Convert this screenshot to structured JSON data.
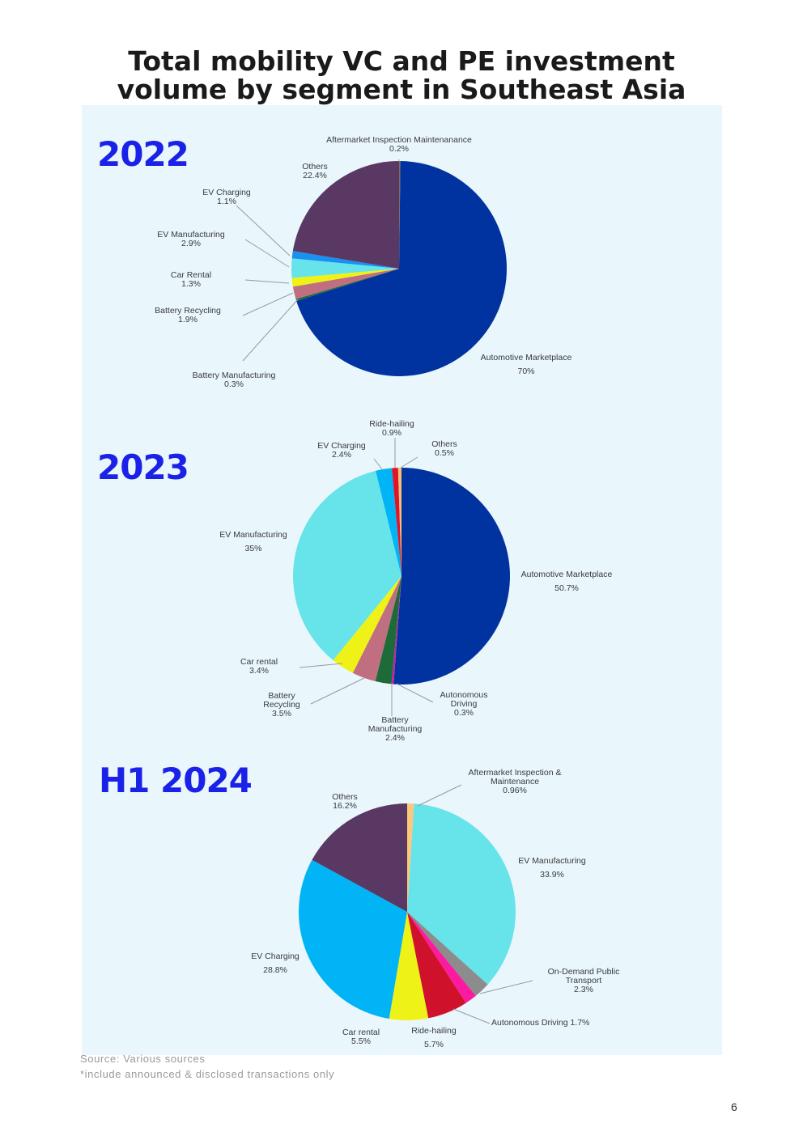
{
  "title_line1": "Total mobility VC and PE investment",
  "title_line2": "volume by segment in Southeast Asia",
  "source": "Source: Various sources",
  "footnote": "*include announced & disclosed transactions only",
  "page_number": "6",
  "chart_data": [
    {
      "type": "pie",
      "title": "2022",
      "start": "top-clockwise",
      "slices": [
        {
          "name": "Aftermarket Inspection Maintenanance",
          "value": 0.2,
          "pct": "0.2%",
          "color": "#7c6f62"
        },
        {
          "name": "Automotive Marketplace",
          "value": 70,
          "pct": "70%",
          "color": "#0033a0"
        },
        {
          "name": "Battery Manufacturing",
          "value": 0.3,
          "pct": "0.3%",
          "color": "#1e6b3a"
        },
        {
          "name": "Battery Recycling",
          "value": 1.9,
          "pct": "1.9%",
          "color": "#c06f80"
        },
        {
          "name": "Car Rental",
          "value": 1.3,
          "pct": "1.3%",
          "color": "#eef216"
        },
        {
          "name": "EV Manufacturing",
          "value": 2.9,
          "pct": "2.9%",
          "color": "#66e4ea"
        },
        {
          "name": "EV Charging",
          "value": 1.1,
          "pct": "1.1%",
          "color": "#1a90f0"
        },
        {
          "name": "Others",
          "value": 22.4,
          "pct": "22.4%",
          "color": "#5a3864"
        }
      ]
    },
    {
      "type": "pie",
      "title": "2023",
      "start": "top-clockwise",
      "slices": [
        {
          "name": "Automotive Marketplace",
          "value": 50.7,
          "pct": "50.7%",
          "color": "#0033a0"
        },
        {
          "name": "Autonomous Driving",
          "value": 0.3,
          "pct": "0.3%",
          "color": "#d01aa8"
        },
        {
          "name": "Battery Manufacturing",
          "value": 2.4,
          "pct": "2.4%",
          "color": "#1e6b3a"
        },
        {
          "name": "Battery Recycling",
          "value": 3.5,
          "pct": "3.5%",
          "color": "#c06f80"
        },
        {
          "name": "Car rental",
          "value": 3.4,
          "pct": "3.4%",
          "color": "#eef216"
        },
        {
          "name": "EV Manufacturing",
          "value": 35,
          "pct": "35%",
          "color": "#66e4ea"
        },
        {
          "name": "EV Charging",
          "value": 2.4,
          "pct": "2.4%",
          "color": "#00b4f5"
        },
        {
          "name": "Ride-hailing",
          "value": 0.9,
          "pct": "0.9%",
          "color": "#e0142a"
        },
        {
          "name": "Others",
          "value": 0.5,
          "pct": "0.5%",
          "color": "#f5c078"
        }
      ]
    },
    {
      "type": "pie",
      "title": "H1 2024",
      "start": "top-clockwise",
      "slices": [
        {
          "name": "Aftermarket Inspection & Maintenance",
          "value": 0.96,
          "pct": "0.96%",
          "color": "#fbc97a"
        },
        {
          "name": "EV Manufacturing",
          "value": 33.9,
          "pct": "33.9%",
          "color": "#66e4ea"
        },
        {
          "name": "On-Demand Public Transport",
          "value": 2.3,
          "pct": "2.3%",
          "color": "#8c8c8c"
        },
        {
          "name": "Autonomous Driving",
          "value": 1.7,
          "pct": "1.7%",
          "color": "#fb1aa0"
        },
        {
          "name": "Ride-hailing",
          "value": 5.7,
          "pct": "5.7%",
          "color": "#d0112b"
        },
        {
          "name": "Car rental",
          "value": 5.5,
          "pct": "5.5%",
          "color": "#eef216"
        },
        {
          "name": "EV Charging",
          "value": 28.8,
          "pct": "28.8%",
          "color": "#00b4f5"
        },
        {
          "name": "Others",
          "value": 16.2,
          "pct": "16.2%",
          "color": "#5a3864"
        }
      ]
    }
  ]
}
